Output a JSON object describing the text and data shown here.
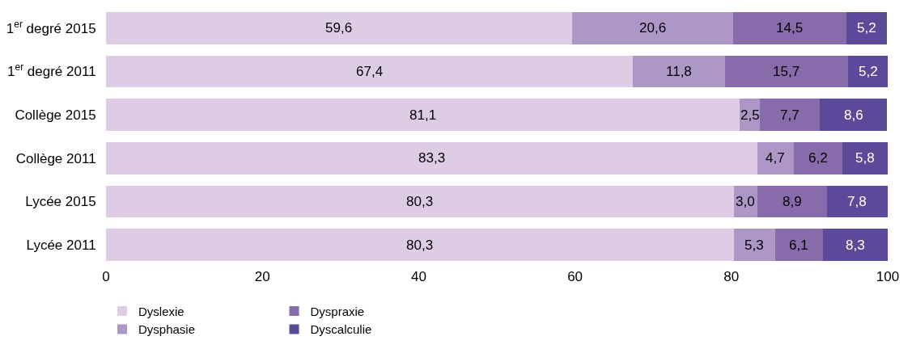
{
  "chart_data": {
    "type": "bar",
    "orientation": "horizontal",
    "stacked": true,
    "categories": [
      "1$^{er}$ degré 2015",
      "1$^{er}$ degré 2011",
      "Collège 2015",
      "Collège 2011",
      "Lycée 2015",
      "Lycée 2011"
    ],
    "series": [
      {
        "name": "Dyslexie",
        "color": "#ddcce4",
        "values": [
          59.6,
          67.4,
          81.1,
          83.3,
          80.3,
          80.3
        ],
        "value_labels": [
          "59,6",
          "67,4",
          "81,1",
          "83,3",
          "80,3",
          "80,3"
        ]
      },
      {
        "name": "Dysphasie",
        "color": "#ad97c6",
        "values": [
          20.6,
          11.8,
          2.5,
          4.7,
          3.0,
          5.3
        ],
        "value_labels": [
          "20,6",
          "11,8",
          "2,5",
          "4,7",
          "3,0",
          "5,3"
        ]
      },
      {
        "name": "Dyspraxie",
        "color": "#886bab",
        "values": [
          14.5,
          15.7,
          7.7,
          6.2,
          8.9,
          6.1
        ],
        "value_labels": [
          "14,5",
          "15,7",
          "7,7",
          "6,2",
          "8,9",
          "6,1"
        ]
      },
      {
        "name": "Dyscalculie",
        "color": "#5b4a99",
        "values": [
          5.2,
          5.2,
          8.6,
          5.8,
          7.8,
          8.3
        ],
        "value_labels": [
          "5,2",
          "5,2",
          "8,6",
          "5,8",
          "7,8",
          "8,3"
        ]
      }
    ],
    "xlim": [
      0,
      100
    ],
    "xticks": [
      0,
      20,
      40,
      60,
      80,
      100
    ],
    "legend": "bottom left"
  }
}
